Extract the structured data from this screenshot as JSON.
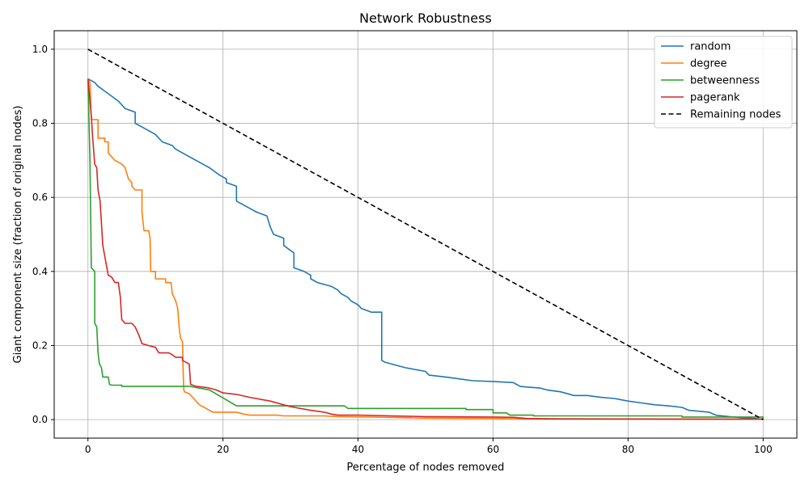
{
  "chart_data": {
    "type": "line",
    "title": "Network Robustness",
    "xlabel": "Percentage of nodes removed",
    "ylabel": "Giant component size (fraction of original nodes)",
    "xlim": [
      -5,
      105
    ],
    "ylim": [
      -0.05,
      1.05
    ],
    "x_ticks": [
      0,
      20,
      40,
      60,
      80,
      100
    ],
    "y_ticks": [
      0.0,
      0.2,
      0.4,
      0.6,
      0.8,
      1.0
    ],
    "x_tick_labels": [
      "0",
      "20",
      "40",
      "60",
      "80",
      "100"
    ],
    "y_tick_labels": [
      "0.0",
      "0.2",
      "0.4",
      "0.6",
      "0.8",
      "1.0"
    ],
    "grid": true,
    "legend_position": "top-right",
    "series": [
      {
        "name": "random",
        "color": "#1f77b4",
        "style": "solid",
        "points": [
          [
            0,
            0.92
          ],
          [
            1,
            0.91
          ],
          [
            1.5,
            0.9
          ],
          [
            3,
            0.88
          ],
          [
            4.5,
            0.86
          ],
          [
            5.5,
            0.84
          ],
          [
            7,
            0.83
          ],
          [
            7,
            0.8
          ],
          [
            8,
            0.79
          ],
          [
            9,
            0.78
          ],
          [
            10,
            0.77
          ],
          [
            11,
            0.75
          ],
          [
            12.5,
            0.74
          ],
          [
            13,
            0.73
          ],
          [
            14,
            0.72
          ],
          [
            16,
            0.7
          ],
          [
            18,
            0.68
          ],
          [
            19.5,
            0.66
          ],
          [
            20.5,
            0.65
          ],
          [
            20.5,
            0.64
          ],
          [
            22,
            0.63
          ],
          [
            22,
            0.59
          ],
          [
            24,
            0.57
          ],
          [
            25,
            0.56
          ],
          [
            26.5,
            0.55
          ],
          [
            27,
            0.52
          ],
          [
            27.5,
            0.5
          ],
          [
            29,
            0.49
          ],
          [
            29,
            0.47
          ],
          [
            30.5,
            0.45
          ],
          [
            30.5,
            0.41
          ],
          [
            32,
            0.4
          ],
          [
            33,
            0.39
          ],
          [
            33,
            0.38
          ],
          [
            34,
            0.37
          ],
          [
            36,
            0.36
          ],
          [
            37,
            0.35
          ],
          [
            37.5,
            0.34
          ],
          [
            38.5,
            0.33
          ],
          [
            39,
            0.32
          ],
          [
            40,
            0.31
          ],
          [
            40.5,
            0.3
          ],
          [
            42,
            0.29
          ],
          [
            43.5,
            0.29
          ],
          [
            43.5,
            0.16
          ],
          [
            44,
            0.155
          ],
          [
            45,
            0.15
          ],
          [
            47,
            0.14
          ],
          [
            50,
            0.13
          ],
          [
            50.5,
            0.12
          ],
          [
            53,
            0.115
          ],
          [
            55,
            0.11
          ],
          [
            57,
            0.105
          ],
          [
            60,
            0.103
          ],
          [
            63,
            0.1
          ],
          [
            64,
            0.09
          ],
          [
            65,
            0.088
          ],
          [
            67,
            0.085
          ],
          [
            68,
            0.08
          ],
          [
            70,
            0.075
          ],
          [
            72,
            0.065
          ],
          [
            74,
            0.065
          ],
          [
            76,
            0.06
          ],
          [
            78,
            0.057
          ],
          [
            80,
            0.05
          ],
          [
            82,
            0.045
          ],
          [
            84,
            0.04
          ],
          [
            86,
            0.037
          ],
          [
            88,
            0.033
          ],
          [
            89,
            0.025
          ],
          [
            92,
            0.02
          ],
          [
            93,
            0.012
          ],
          [
            95,
            0.008
          ],
          [
            97,
            0.005
          ],
          [
            99,
            0.003
          ],
          [
            100,
            0.0
          ]
        ]
      },
      {
        "name": "degree",
        "color": "#ff7f0e",
        "style": "solid",
        "points": [
          [
            0,
            0.92
          ],
          [
            0.3,
            0.91
          ],
          [
            0.5,
            0.81
          ],
          [
            1,
            0.81
          ],
          [
            1.5,
            0.81
          ],
          [
            1.5,
            0.76
          ],
          [
            2.5,
            0.76
          ],
          [
            2.5,
            0.75
          ],
          [
            3,
            0.75
          ],
          [
            3,
            0.72
          ],
          [
            3.5,
            0.71
          ],
          [
            4,
            0.7
          ],
          [
            5,
            0.69
          ],
          [
            5.5,
            0.68
          ],
          [
            6,
            0.65
          ],
          [
            6.5,
            0.64
          ],
          [
            6.5,
            0.63
          ],
          [
            7,
            0.62
          ],
          [
            8,
            0.62
          ],
          [
            8,
            0.56
          ],
          [
            8.3,
            0.51
          ],
          [
            9,
            0.51
          ],
          [
            9.2,
            0.49
          ],
          [
            9.3,
            0.4
          ],
          [
            10,
            0.4
          ],
          [
            10,
            0.38
          ],
          [
            11.5,
            0.38
          ],
          [
            11.5,
            0.37
          ],
          [
            12.3,
            0.37
          ],
          [
            12.5,
            0.34
          ],
          [
            13,
            0.32
          ],
          [
            13.3,
            0.3
          ],
          [
            13.5,
            0.25
          ],
          [
            13.7,
            0.22
          ],
          [
            14,
            0.21
          ],
          [
            14.1,
            0.13
          ],
          [
            14.2,
            0.08
          ],
          [
            14.3,
            0.075
          ],
          [
            15,
            0.07
          ],
          [
            15.5,
            0.06
          ],
          [
            16,
            0.05
          ],
          [
            16.5,
            0.04
          ],
          [
            17.5,
            0.03
          ],
          [
            18.5,
            0.02
          ],
          [
            20,
            0.02
          ],
          [
            22,
            0.02
          ],
          [
            23,
            0.015
          ],
          [
            24,
            0.012
          ],
          [
            28,
            0.012
          ],
          [
            29,
            0.01
          ],
          [
            35,
            0.01
          ],
          [
            37,
            0.008
          ],
          [
            45,
            0.006
          ],
          [
            50,
            0.004
          ],
          [
            60,
            0.003
          ],
          [
            64,
            0.002
          ],
          [
            65,
            0.002
          ],
          [
            100,
            0.001
          ]
        ]
      },
      {
        "name": "betweenness",
        "color": "#2ca02c",
        "style": "solid",
        "points": [
          [
            0,
            0.92
          ],
          [
            0.3,
            0.7
          ],
          [
            0.5,
            0.41
          ],
          [
            1,
            0.4
          ],
          [
            1,
            0.26
          ],
          [
            1.3,
            0.25
          ],
          [
            1.5,
            0.18
          ],
          [
            1.7,
            0.15
          ],
          [
            2,
            0.14
          ],
          [
            2.2,
            0.115
          ],
          [
            3,
            0.115
          ],
          [
            3.2,
            0.095
          ],
          [
            3.5,
            0.093
          ],
          [
            5,
            0.093
          ],
          [
            5,
            0.09
          ],
          [
            14,
            0.09
          ],
          [
            15,
            0.09
          ],
          [
            18,
            0.08
          ],
          [
            22,
            0.037
          ],
          [
            38,
            0.037
          ],
          [
            38.5,
            0.03
          ],
          [
            56,
            0.03
          ],
          [
            56,
            0.027
          ],
          [
            60,
            0.027
          ],
          [
            60,
            0.018
          ],
          [
            62,
            0.018
          ],
          [
            62.5,
            0.012
          ],
          [
            66,
            0.012
          ],
          [
            66,
            0.01
          ],
          [
            88,
            0.01
          ],
          [
            88,
            0.007
          ],
          [
            100,
            0.007
          ],
          [
            100,
            0.0
          ]
        ]
      },
      {
        "name": "pagerank",
        "color": "#d62728",
        "style": "solid",
        "points": [
          [
            0,
            0.92
          ],
          [
            0.3,
            0.86
          ],
          [
            0.5,
            0.82
          ],
          [
            0.7,
            0.76
          ],
          [
            1,
            0.69
          ],
          [
            1.3,
            0.68
          ],
          [
            1.5,
            0.62
          ],
          [
            1.8,
            0.59
          ],
          [
            2,
            0.53
          ],
          [
            2.2,
            0.47
          ],
          [
            2.5,
            0.44
          ],
          [
            3,
            0.39
          ],
          [
            3.5,
            0.385
          ],
          [
            4,
            0.37
          ],
          [
            4.5,
            0.37
          ],
          [
            4.8,
            0.33
          ],
          [
            5,
            0.27
          ],
          [
            5.5,
            0.26
          ],
          [
            6.5,
            0.26
          ],
          [
            7,
            0.25
          ],
          [
            7.5,
            0.23
          ],
          [
            8,
            0.205
          ],
          [
            9,
            0.2
          ],
          [
            10,
            0.195
          ],
          [
            10.5,
            0.18
          ],
          [
            12,
            0.18
          ],
          [
            12.5,
            0.175
          ],
          [
            13,
            0.168
          ],
          [
            14,
            0.168
          ],
          [
            14,
            0.16
          ],
          [
            15,
            0.15
          ],
          [
            15.2,
            0.095
          ],
          [
            16,
            0.09
          ],
          [
            17,
            0.088
          ],
          [
            18,
            0.085
          ],
          [
            19,
            0.08
          ],
          [
            20,
            0.072
          ],
          [
            22,
            0.068
          ],
          [
            24,
            0.06
          ],
          [
            27,
            0.05
          ],
          [
            30,
            0.035
          ],
          [
            33,
            0.025
          ],
          [
            35,
            0.02
          ],
          [
            36,
            0.015
          ],
          [
            37,
            0.012
          ],
          [
            40,
            0.012
          ],
          [
            45,
            0.01
          ],
          [
            50,
            0.008
          ],
          [
            60,
            0.007
          ],
          [
            63,
            0.006
          ],
          [
            65,
            0.003
          ],
          [
            70,
            0.002
          ],
          [
            100,
            0.001
          ]
        ]
      },
      {
        "name": "Remaining nodes",
        "color": "#000000",
        "style": "dashed",
        "points": [
          [
            0,
            1.0
          ],
          [
            100,
            0.0
          ]
        ]
      }
    ]
  }
}
